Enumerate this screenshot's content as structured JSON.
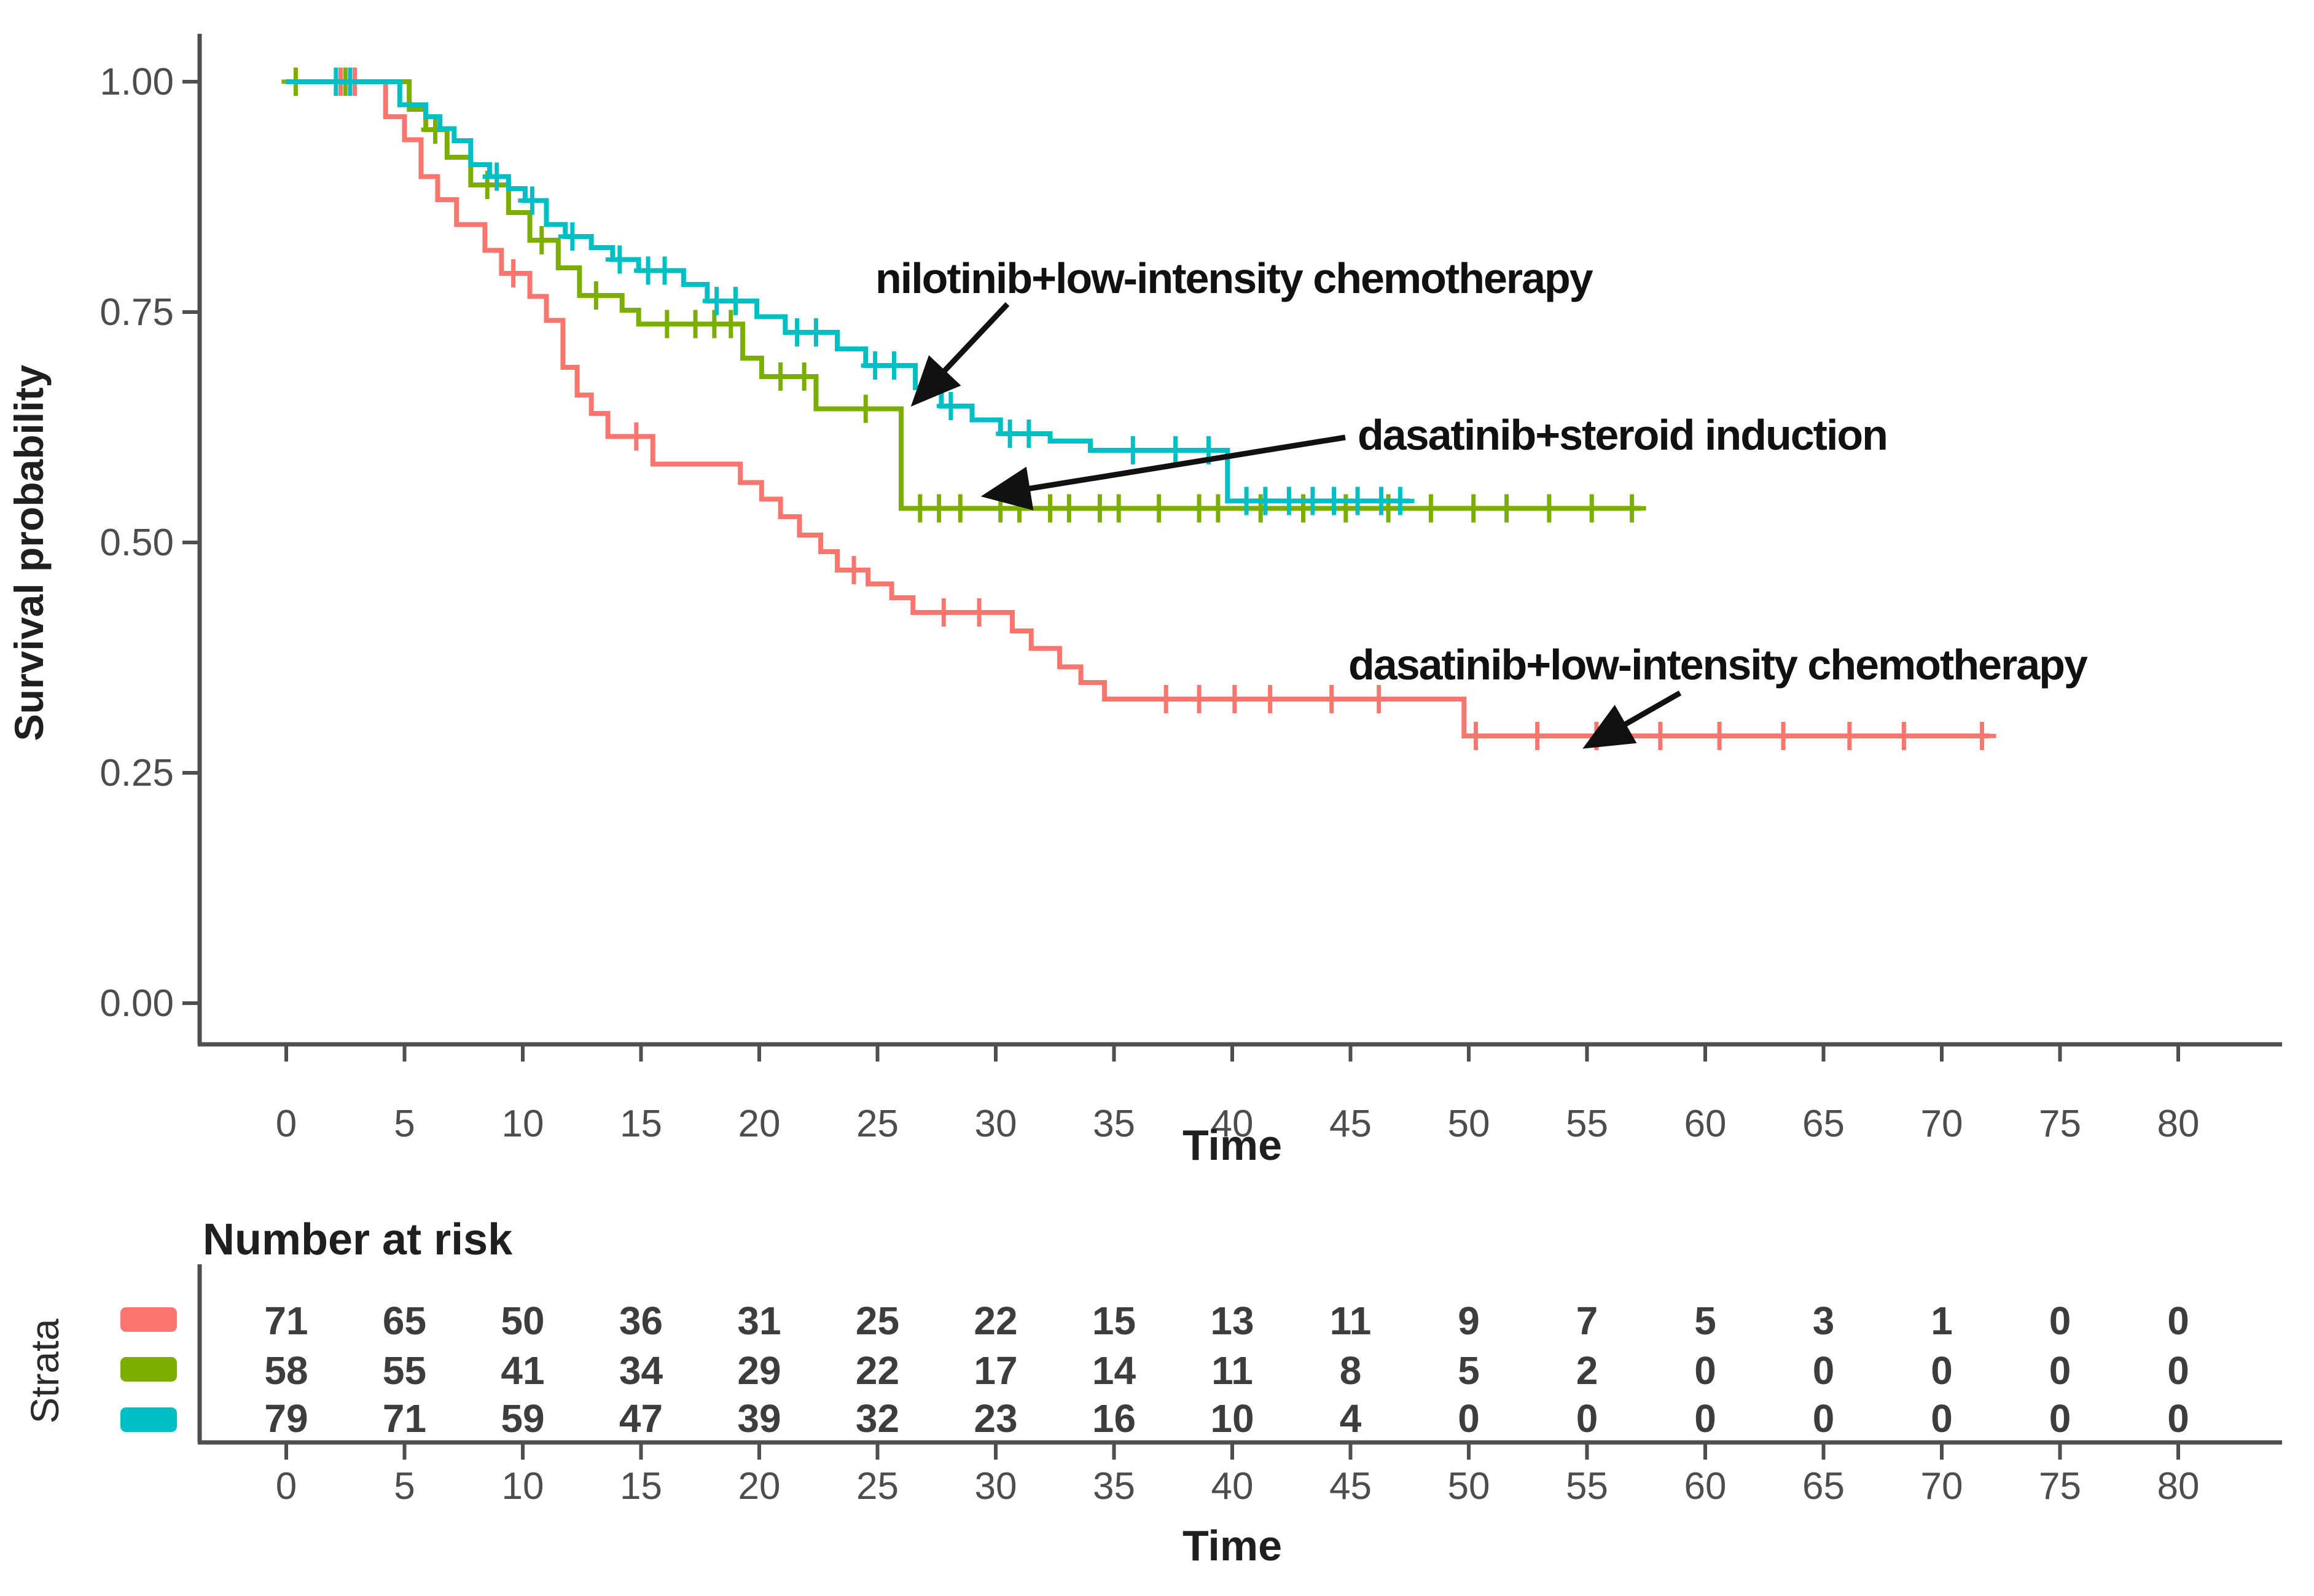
{
  "figure": {
    "background": "#ffffff"
  },
  "colors": {
    "red": "#F8766D",
    "green": "#7CAE00",
    "teal": "#00BFC4",
    "axis_line": "#4f4f4f",
    "tick_text": "#4d4d4d",
    "annotation_text": "#111111"
  },
  "y_axis": {
    "title": "Survival probability",
    "tick_labels": [
      "1.00",
      "0.75",
      "0.50",
      "0.25",
      "0.00"
    ],
    "tick_values": [
      1.0,
      0.75,
      0.5,
      0.25,
      0.0
    ]
  },
  "x_axis": {
    "title": "Time",
    "tick_values": [
      0,
      5,
      10,
      15,
      20,
      25,
      30,
      35,
      40,
      45,
      50,
      55,
      60,
      65,
      70,
      75,
      80
    ]
  },
  "risk_table": {
    "title": "Number at risk",
    "strata_label": "Strata",
    "time_label": "Time",
    "times": [
      0,
      5,
      10,
      15,
      20,
      25,
      30,
      35,
      40,
      45,
      50,
      55,
      60,
      65,
      70,
      75,
      80
    ],
    "rows": [
      {
        "stratum": "dasatinib+low-intensity chemotherapy",
        "color_key": "red",
        "counts": [
          71,
          65,
          50,
          36,
          31,
          25,
          22,
          15,
          13,
          11,
          9,
          7,
          5,
          3,
          1,
          0,
          0
        ]
      },
      {
        "stratum": "dasatinib+steroid induction",
        "color_key": "green",
        "counts": [
          58,
          55,
          41,
          34,
          29,
          22,
          17,
          14,
          11,
          8,
          5,
          2,
          0,
          0,
          0,
          0,
          0
        ]
      },
      {
        "stratum": "nilotinib+low-intensity chemotherapy",
        "color_key": "teal",
        "counts": [
          79,
          71,
          59,
          47,
          39,
          32,
          23,
          16,
          10,
          4,
          0,
          0,
          0,
          0,
          0,
          0,
          0
        ]
      }
    ]
  },
  "chart_data": {
    "type": "line",
    "subtype": "kaplan-meier-step",
    "title": "",
    "xlabel": "Time",
    "ylabel": "Survival probability",
    "xlim": [
      0,
      80
    ],
    "ylim": [
      0.0,
      1.0
    ],
    "grid": false,
    "legend_position": "risk-table-left",
    "series": [
      {
        "name": "dasatinib+low-intensity chemotherapy",
        "color_key": "red",
        "n_start": 71,
        "end_time": 72.0,
        "steps": [
          [
            4.2,
            0.962
          ],
          [
            5.0,
            0.937
          ],
          [
            5.7,
            0.897
          ],
          [
            6.4,
            0.872
          ],
          [
            7.2,
            0.845
          ],
          [
            8.4,
            0.817
          ],
          [
            9.1,
            0.792
          ],
          [
            10.3,
            0.767
          ],
          [
            11.0,
            0.741
          ],
          [
            11.7,
            0.69
          ],
          [
            12.3,
            0.66
          ],
          [
            12.9,
            0.64
          ],
          [
            13.6,
            0.615
          ],
          [
            15.5,
            0.585
          ],
          [
            19.2,
            0.565
          ],
          [
            20.1,
            0.547
          ],
          [
            20.9,
            0.528
          ],
          [
            21.7,
            0.508
          ],
          [
            22.6,
            0.49
          ],
          [
            23.3,
            0.47
          ],
          [
            24.6,
            0.455
          ],
          [
            25.6,
            0.44
          ],
          [
            26.5,
            0.424
          ],
          [
            30.7,
            0.404
          ],
          [
            31.5,
            0.385
          ],
          [
            32.7,
            0.365
          ],
          [
            33.6,
            0.348
          ],
          [
            34.6,
            0.33
          ],
          [
            49.8,
            0.29
          ]
        ],
        "censors": [
          [
            2.3,
            1
          ],
          [
            2.9,
            1
          ],
          [
            9.6,
            0.792
          ],
          [
            14.8,
            0.615
          ],
          [
            24.0,
            0.47
          ],
          [
            27.8,
            0.424
          ],
          [
            29.3,
            0.424
          ],
          [
            37.2,
            0.33
          ],
          [
            38.6,
            0.33
          ],
          [
            40.1,
            0.33
          ],
          [
            41.6,
            0.33
          ],
          [
            44.2,
            0.33
          ],
          [
            46.2,
            0.33
          ],
          [
            50.3,
            0.29
          ],
          [
            52.9,
            0.29
          ],
          [
            55.4,
            0.29
          ],
          [
            58.1,
            0.29
          ],
          [
            60.6,
            0.29
          ],
          [
            63.3,
            0.29
          ],
          [
            66.1,
            0.29
          ],
          [
            68.4,
            0.29
          ],
          [
            71.7,
            0.29
          ]
        ]
      },
      {
        "name": "dasatinib+steroid induction",
        "color_key": "green",
        "n_start": 58,
        "end_time": 57.3,
        "steps": [
          [
            5.2,
            0.97
          ],
          [
            5.9,
            0.948
          ],
          [
            6.8,
            0.918
          ],
          [
            7.8,
            0.888
          ],
          [
            9.4,
            0.858
          ],
          [
            10.3,
            0.828
          ],
          [
            11.5,
            0.798
          ],
          [
            12.4,
            0.768
          ],
          [
            14.2,
            0.752
          ],
          [
            14.9,
            0.737
          ],
          [
            19.3,
            0.7
          ],
          [
            20.1,
            0.68
          ],
          [
            22.4,
            0.645
          ],
          [
            26.0,
            0.537
          ]
        ],
        "censors": [
          [
            0.4,
            1
          ],
          [
            2.5,
            1
          ],
          [
            6.3,
            0.948
          ],
          [
            8.5,
            0.888
          ],
          [
            10.8,
            0.828
          ],
          [
            13.1,
            0.768
          ],
          [
            16.1,
            0.737
          ],
          [
            17.3,
            0.737
          ],
          [
            18.1,
            0.737
          ],
          [
            18.8,
            0.737
          ],
          [
            20.9,
            0.68
          ],
          [
            21.9,
            0.68
          ],
          [
            24.5,
            0.645
          ],
          [
            26.8,
            0.537
          ],
          [
            27.6,
            0.537
          ],
          [
            28.5,
            0.537
          ],
          [
            30.2,
            0.537
          ],
          [
            31.0,
            0.537
          ],
          [
            32.3,
            0.537
          ],
          [
            33.1,
            0.537
          ],
          [
            34.4,
            0.537
          ],
          [
            35.2,
            0.537
          ],
          [
            36.9,
            0.537
          ],
          [
            38.6,
            0.537
          ],
          [
            39.4,
            0.537
          ],
          [
            41.2,
            0.537
          ],
          [
            43.0,
            0.537
          ],
          [
            44.8,
            0.537
          ],
          [
            46.6,
            0.537
          ],
          [
            48.4,
            0.537
          ],
          [
            50.2,
            0.537
          ],
          [
            51.6,
            0.537
          ],
          [
            53.4,
            0.537
          ],
          [
            55.2,
            0.537
          ],
          [
            56.9,
            0.537
          ]
        ]
      },
      {
        "name": "nilotinib+low-intensity chemotherapy",
        "color_key": "teal",
        "n_start": 79,
        "end_time": 47.5,
        "steps": [
          [
            4.8,
            0.975
          ],
          [
            5.9,
            0.962
          ],
          [
            6.5,
            0.949
          ],
          [
            7.1,
            0.936
          ],
          [
            7.8,
            0.91
          ],
          [
            8.6,
            0.897
          ],
          [
            9.4,
            0.884
          ],
          [
            10.1,
            0.871
          ],
          [
            11.0,
            0.845
          ],
          [
            11.8,
            0.832
          ],
          [
            12.9,
            0.82
          ],
          [
            13.8,
            0.807
          ],
          [
            14.9,
            0.795
          ],
          [
            16.8,
            0.78
          ],
          [
            17.8,
            0.762
          ],
          [
            19.9,
            0.745
          ],
          [
            21.1,
            0.728
          ],
          [
            23.3,
            0.71
          ],
          [
            24.5,
            0.692
          ],
          [
            26.6,
            0.668
          ],
          [
            27.7,
            0.648
          ],
          [
            29.0,
            0.633
          ],
          [
            30.2,
            0.618
          ],
          [
            32.3,
            0.61
          ],
          [
            34.0,
            0.6
          ],
          [
            39.8,
            0.545
          ]
        ],
        "censors": [
          [
            2.1,
            1
          ],
          [
            2.7,
            1
          ],
          [
            8.9,
            0.897
          ],
          [
            10.4,
            0.871
          ],
          [
            12.1,
            0.832
          ],
          [
            14.1,
            0.807
          ],
          [
            15.3,
            0.795
          ],
          [
            16.0,
            0.795
          ],
          [
            18.2,
            0.762
          ],
          [
            19.0,
            0.762
          ],
          [
            21.6,
            0.728
          ],
          [
            22.4,
            0.728
          ],
          [
            24.9,
            0.692
          ],
          [
            25.7,
            0.692
          ],
          [
            28.1,
            0.648
          ],
          [
            30.6,
            0.618
          ],
          [
            31.4,
            0.618
          ],
          [
            35.8,
            0.6
          ],
          [
            37.6,
            0.6
          ],
          [
            39.0,
            0.6
          ],
          [
            40.6,
            0.545
          ],
          [
            41.4,
            0.545
          ],
          [
            42.4,
            0.545
          ],
          [
            43.4,
            0.545
          ],
          [
            44.3,
            0.545
          ],
          [
            45.3,
            0.545
          ],
          [
            46.3,
            0.545
          ],
          [
            47.1,
            0.545
          ]
        ]
      }
    ],
    "annotations": [
      {
        "label": "nilotinib+low-intensity chemotherapy",
        "points_to_series": "nilotinib+low-intensity chemotherapy"
      },
      {
        "label": "dasatinib+steroid induction",
        "points_to_series": "dasatinib+steroid induction"
      },
      {
        "label": "dasatinib+low-intensity chemotherapy",
        "points_to_series": "dasatinib+low-intensity chemotherapy"
      }
    ]
  }
}
